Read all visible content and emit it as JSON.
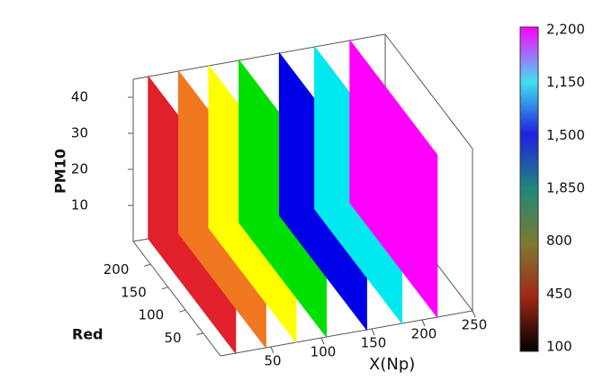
{
  "chart_data": {
    "type": "planes3d",
    "xlabel": "X(Np)",
    "ylabel": "Red",
    "zlabel": "PM10",
    "xlim": [
      0,
      250
    ],
    "ylim": [
      0,
      250
    ],
    "zlim": [
      0,
      45
    ],
    "xticks": [
      50,
      100,
      150,
      200,
      250
    ],
    "yticks": [
      50,
      100,
      150,
      200
    ],
    "zticks": [
      10,
      20,
      30,
      40
    ],
    "series": [
      {
        "color": "#e0202a",
        "x": 15
      },
      {
        "color": "#f07820",
        "x": 45
      },
      {
        "color": "#ffff00",
        "x": 75
      },
      {
        "color": "#00e000",
        "x": 105
      },
      {
        "color": "#0000e8",
        "x": 145
      },
      {
        "color": "#00e8f0",
        "x": 180
      },
      {
        "color": "#ff00ff",
        "x": 215
      }
    ],
    "colorbar_labels": [
      "2,200",
      "1,150",
      "1,500",
      "1,850",
      "800",
      "450",
      "100"
    ]
  }
}
